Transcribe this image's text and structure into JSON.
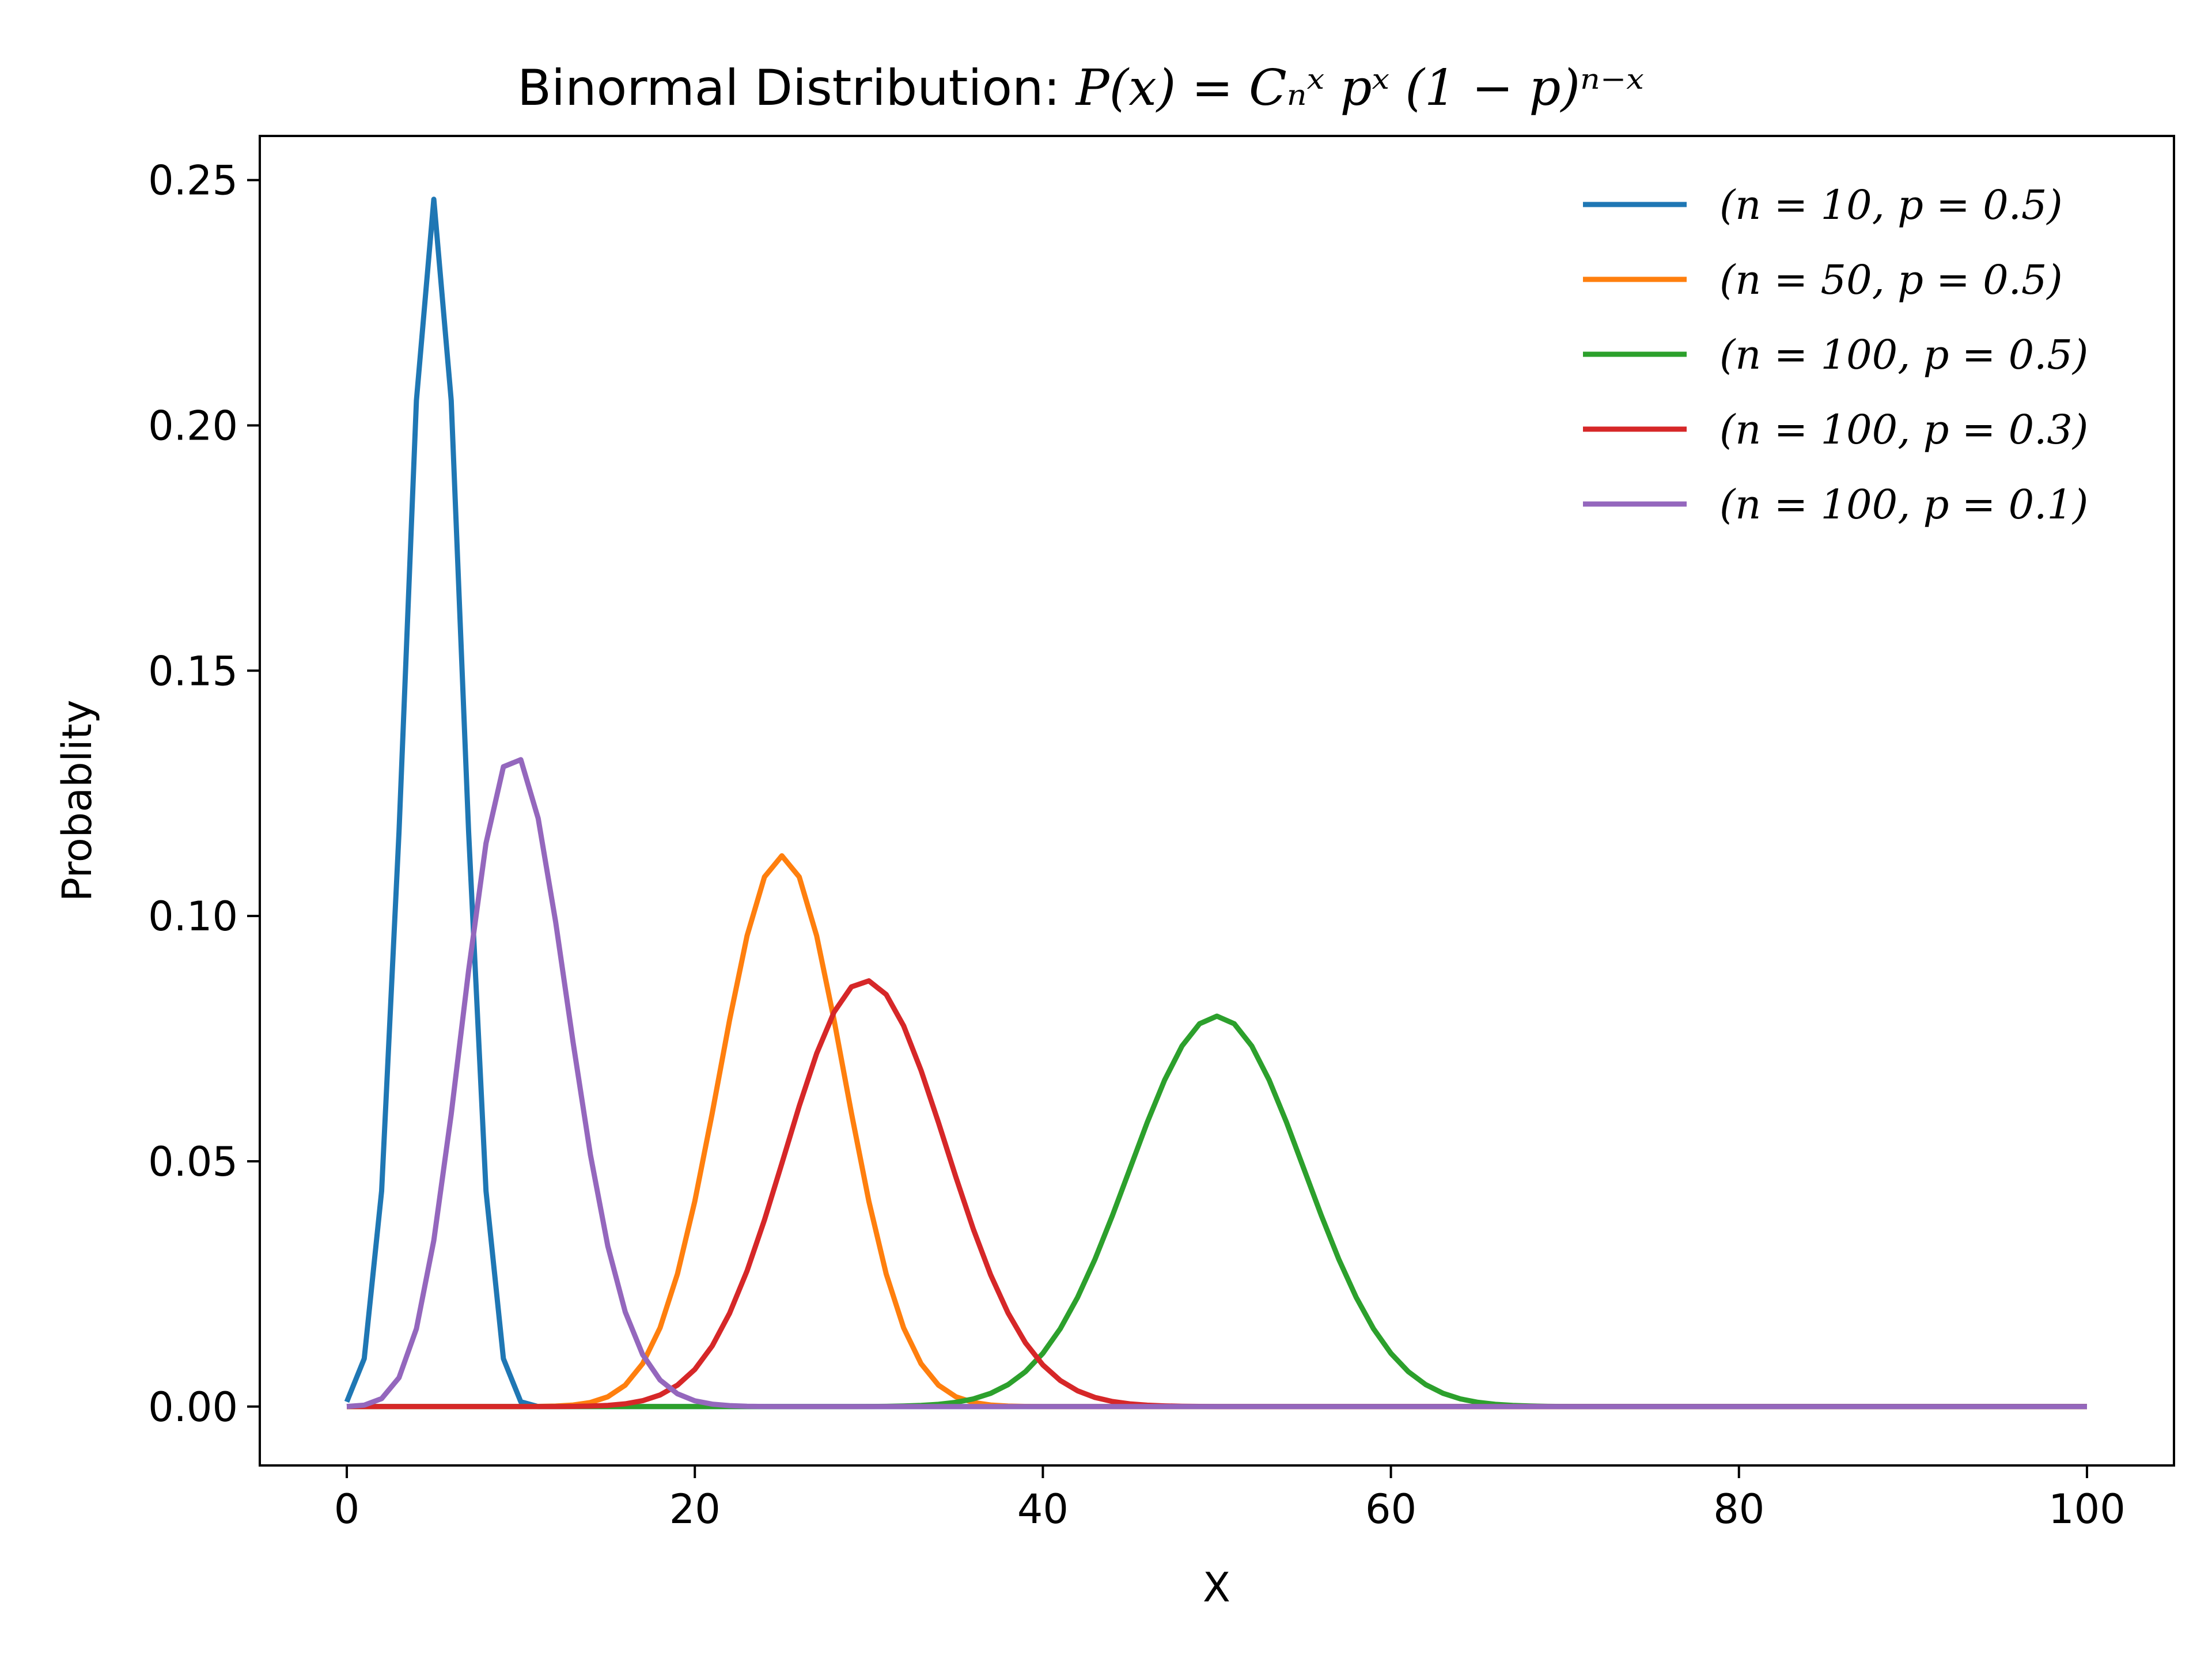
{
  "chart_data": {
    "type": "line",
    "title_prefix": "Binormal Distribution: ",
    "title_formula": "P(x) = Cₙˣ pˣ (1 − p)ⁿ⁻ˣ",
    "xlabel": "X",
    "ylabel": "Probablity",
    "xlim": [
      -5,
      105
    ],
    "ylim": [
      -0.012,
      0.259
    ],
    "xticks": [
      0,
      20,
      40,
      60,
      80,
      100
    ],
    "xtick_labels": [
      "0",
      "20",
      "40",
      "60",
      "80",
      "100"
    ],
    "yticks": [
      0.0,
      0.05,
      0.1,
      0.15,
      0.2,
      0.25
    ],
    "ytick_labels": [
      "0.00",
      "0.05",
      "0.10",
      "0.15",
      "0.20",
      "0.25"
    ],
    "grid": false,
    "legend_position": "top-right",
    "x": [
      0,
      100
    ],
    "series": [
      {
        "name": "(n = 10, p = 0.5)",
        "n": 10,
        "p": 0.5,
        "color": "#1f77b4"
      },
      {
        "name": "(n = 50, p = 0.5)",
        "n": 50,
        "p": 0.5,
        "color": "#ff7f0e"
      },
      {
        "name": "(n = 100, p = 0.5)",
        "n": 100,
        "p": 0.5,
        "color": "#2ca02c"
      },
      {
        "name": "(n = 100, p = 0.3)",
        "n": 100,
        "p": 0.3,
        "color": "#d62728"
      },
      {
        "name": "(n = 100, p = 0.1)",
        "n": 100,
        "p": 0.1,
        "color": "#9467bd"
      }
    ]
  }
}
